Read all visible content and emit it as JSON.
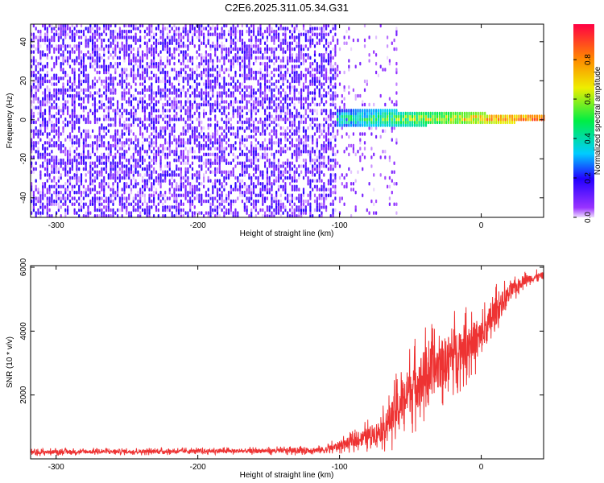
{
  "title": "C2E6.2025.311.05.34.G31",
  "chart_data": [
    {
      "type": "heatmap",
      "title": "C2E6.2025.311.05.34.G31",
      "xlabel": "Height of straight line (km)",
      "ylabel": "Frequency (Hz)",
      "xlim": [
        -318,
        44
      ],
      "ylim": [
        -50,
        49
      ],
      "xticks": [
        -300,
        -200,
        -100,
        0
      ],
      "yticks": [
        -40,
        -20,
        0,
        20,
        40
      ],
      "colorbar": {
        "label": "Normalized spectral amplitude",
        "range": [
          0.0,
          0.98
        ],
        "ticks": [
          0.0,
          0.2,
          0.4,
          0.6,
          0.8
        ],
        "colormap": "rainbow (violet to red)"
      },
      "regions": [
        {
          "name": "noise",
          "x_range": [
            -318,
            -102
          ],
          "freq_range": [
            -50,
            49
          ],
          "amplitude_range": [
            0.0,
            0.2
          ]
        },
        {
          "name": "transition",
          "x_range": [
            -102,
            -60
          ],
          "freq_range": [
            -50,
            49
          ],
          "amplitude_range": [
            0.0,
            0.1
          ]
        },
        {
          "name": "carrier",
          "x_range": [
            -102,
            44
          ],
          "center_freq": 0,
          "half_width_start": 5,
          "half_width_end": 1.5,
          "amplitude_range": [
            0.2,
            0.98
          ]
        }
      ]
    },
    {
      "type": "line",
      "xlabel": "Height of straight line (km)",
      "ylabel": "SNR (10 * v/v)",
      "xlim": [
        -318,
        44
      ],
      "ylim": [
        0,
        6050
      ],
      "xticks": [
        -300,
        -200,
        -100,
        0
      ],
      "yticks": [
        2000,
        4000,
        6000
      ],
      "series": [
        {
          "name": "SNR",
          "color": "#ee3333",
          "x": [
            -318,
            -300,
            -250,
            -200,
            -150,
            -110,
            -90,
            -70,
            -60,
            -50,
            -40,
            -30,
            -20,
            -10,
            0,
            10,
            20,
            30,
            44
          ],
          "y": [
            200,
            220,
            230,
            240,
            250,
            280,
            550,
            900,
            1500,
            2200,
            2600,
            2900,
            3300,
            3600,
            3800,
            4600,
            5200,
            5600,
            5750
          ],
          "noise_amplitude": [
            120,
            120,
            120,
            120,
            130,
            200,
            350,
            700,
            1200,
            1500,
            1600,
            1500,
            1400,
            1300,
            1100,
            900,
            500,
            300,
            200
          ]
        }
      ]
    }
  ]
}
